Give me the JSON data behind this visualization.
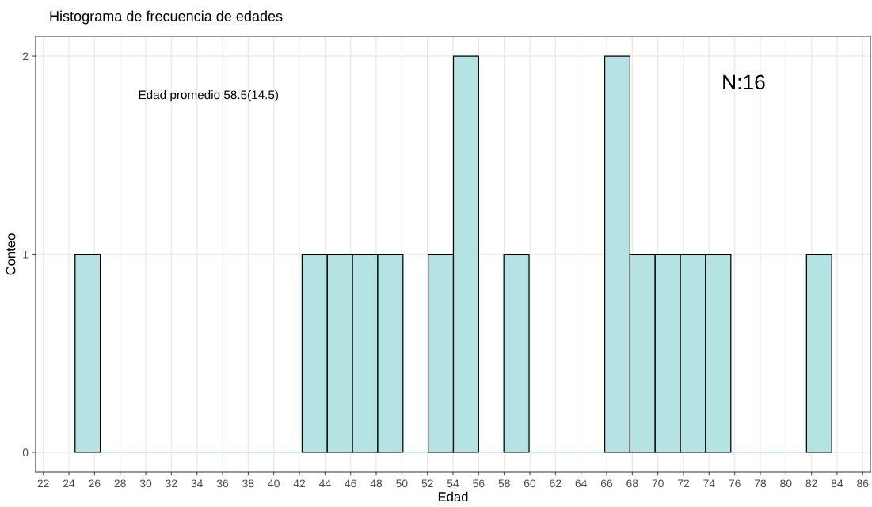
{
  "chart_data": {
    "type": "histogram",
    "title": "Histograma de frecuencia de edades",
    "xlabel": "Edad",
    "ylabel": "Conteo",
    "bins": [
      24.48,
      26.45,
      28.42,
      30.39,
      32.36,
      34.33,
      36.3,
      38.27,
      40.24,
      42.21,
      44.18,
      46.15,
      48.12,
      50.09,
      52.06,
      54.03,
      56.0,
      57.97,
      59.94,
      61.91,
      63.88,
      65.85,
      67.82,
      69.79,
      71.76,
      73.73,
      75.7,
      77.67,
      79.64,
      81.61,
      83.58
    ],
    "values": [
      1,
      0,
      0,
      0,
      0,
      0,
      0,
      0,
      0,
      1,
      1,
      1,
      1,
      0,
      1,
      2,
      0,
      1,
      0,
      0,
      0,
      2,
      1,
      1,
      1,
      1,
      0,
      0,
      0,
      1
    ],
    "color": "#b5e2e2",
    "xlim": [
      21.4,
      86.6
    ],
    "xticks": [
      22,
      24,
      26,
      28,
      30,
      32,
      34,
      36,
      38,
      40,
      42,
      44,
      46,
      48,
      50,
      52,
      54,
      56,
      58,
      60,
      62,
      64,
      66,
      68,
      70,
      72,
      74,
      76,
      78,
      80,
      82,
      84,
      86
    ],
    "ylim": [
      -0.1,
      2.1
    ],
    "yticks": [
      0,
      1,
      2
    ],
    "grid": true,
    "annotations": [
      "Edad promedio 58.5(14.5)",
      "N:16"
    ]
  }
}
